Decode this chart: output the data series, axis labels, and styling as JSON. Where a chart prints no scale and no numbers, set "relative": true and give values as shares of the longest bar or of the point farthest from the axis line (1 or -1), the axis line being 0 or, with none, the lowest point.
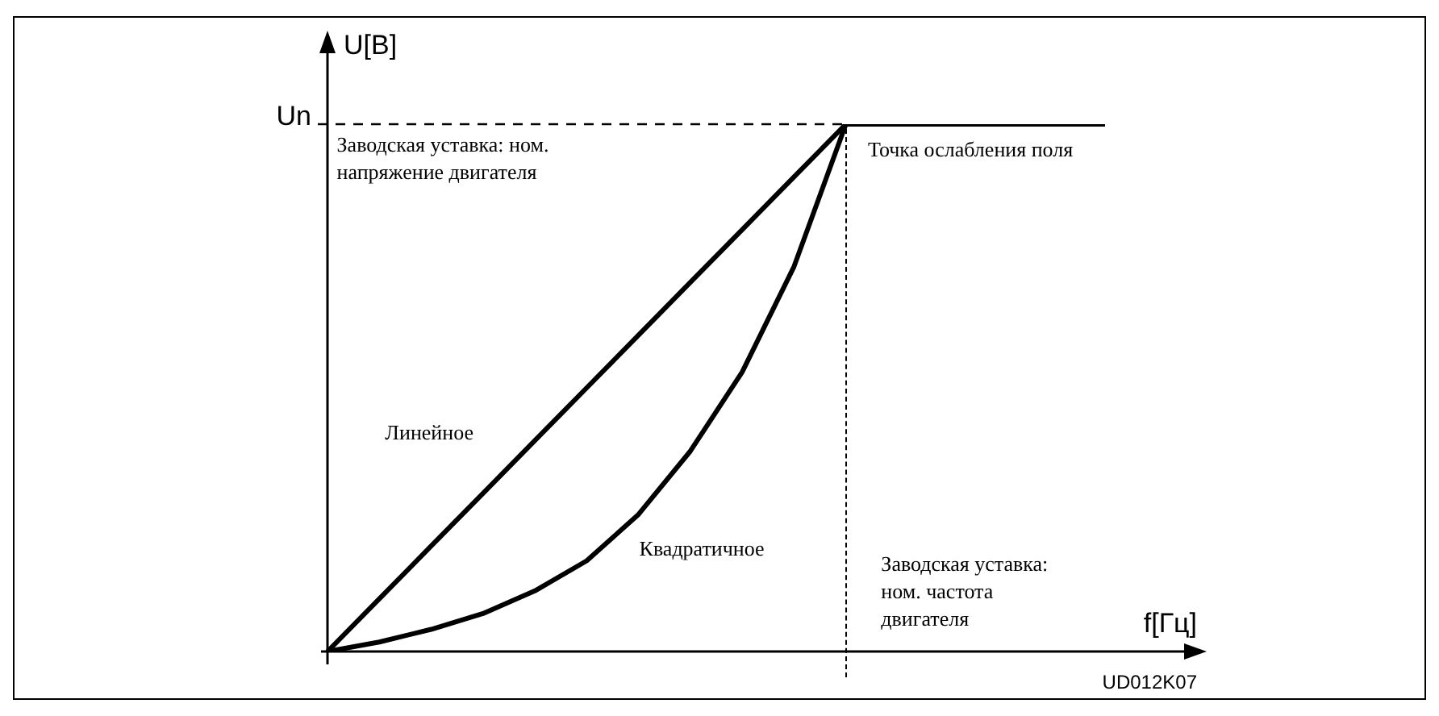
{
  "chart_data": {
    "type": "line",
    "relative": true,
    "xlabel": "f[Гц]",
    "ylabel": "U[В]",
    "legend": false,
    "marker": "none",
    "line_style": "solid",
    "categories": [
      null,
      null,
      null,
      null,
      null,
      null,
      null,
      null,
      null,
      null,
      null,
      null,
      null,
      null,
      null,
      null
    ],
    "series": [
      {
        "color": "#000000",
        "values": [
          0,
          0.1,
          0.2,
          0.3,
          0.4,
          0.5,
          0.6,
          0.7,
          0.8,
          0.9,
          1,
          1,
          1,
          1,
          1,
          1
        ]
      },
      {
        "color": "#000000",
        "values": [
          0,
          0.018,
          0.042,
          0.072,
          0.115,
          0.172,
          0.26,
          0.38,
          0.53,
          0.73,
          1,
          null,
          null,
          null,
          null,
          null
        ]
      }
    ],
    "ref_lines": [
      {
        "axis": "y",
        "value": 1,
        "label": "Un",
        "line_style": "dashed"
      }
    ],
    "annotations": [
      "Заводская уставка: ном.\nнапряжение двигателя",
      "Точка ослабления поля",
      "Линейное",
      "Квадратичное",
      "Заводская уставка:\nном. частота\nдвигателя",
      "UD012K07"
    ]
  }
}
